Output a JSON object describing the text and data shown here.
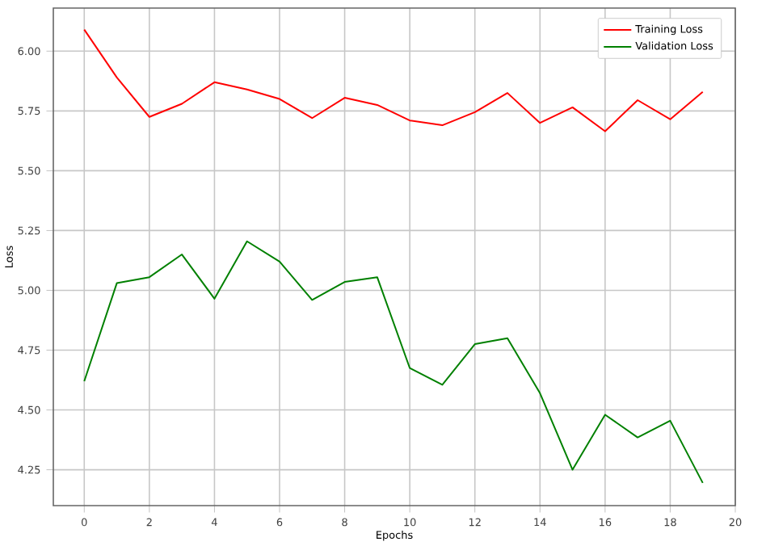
{
  "chart_data": {
    "type": "line",
    "xlabel": "Epochs",
    "ylabel": "Loss",
    "x": [
      0,
      1,
      2,
      3,
      4,
      5,
      6,
      7,
      8,
      9,
      10,
      11,
      12,
      13,
      14,
      15,
      16,
      17,
      18,
      19
    ],
    "series": [
      {
        "name": "Training Loss",
        "color": "#ff0000",
        "values": [
          6.09,
          5.89,
          5.725,
          5.78,
          5.87,
          5.84,
          5.8,
          5.72,
          5.805,
          5.775,
          5.71,
          5.69,
          5.745,
          5.825,
          5.7,
          5.765,
          5.665,
          5.795,
          5.715,
          5.83
        ]
      },
      {
        "name": "Validation Loss",
        "color": "#008000",
        "values": [
          4.62,
          5.03,
          5.055,
          5.15,
          4.965,
          5.205,
          5.12,
          4.96,
          5.035,
          5.055,
          4.675,
          4.605,
          4.775,
          4.8,
          4.57,
          4.25,
          4.48,
          4.385,
          4.455,
          4.195
        ]
      }
    ],
    "xlim": [
      -0.95,
      20
    ],
    "ylim": [
      4.1,
      6.18
    ],
    "xticks": [
      0,
      2,
      4,
      6,
      8,
      10,
      12,
      14,
      16,
      18,
      20
    ],
    "yticks": [
      {
        "value": 4.25,
        "label": "4.25"
      },
      {
        "value": 4.5,
        "label": "4.50"
      },
      {
        "value": 4.75,
        "label": "4.75"
      },
      {
        "value": 5.0,
        "label": "5.00"
      },
      {
        "value": 5.25,
        "label": "5.25"
      },
      {
        "value": 5.5,
        "label": "5.50"
      },
      {
        "value": 5.75,
        "label": "5.75"
      },
      {
        "value": 6.0,
        "label": "6.00"
      }
    ],
    "grid": true,
    "legend": "top right",
    "line_style": "solid"
  }
}
